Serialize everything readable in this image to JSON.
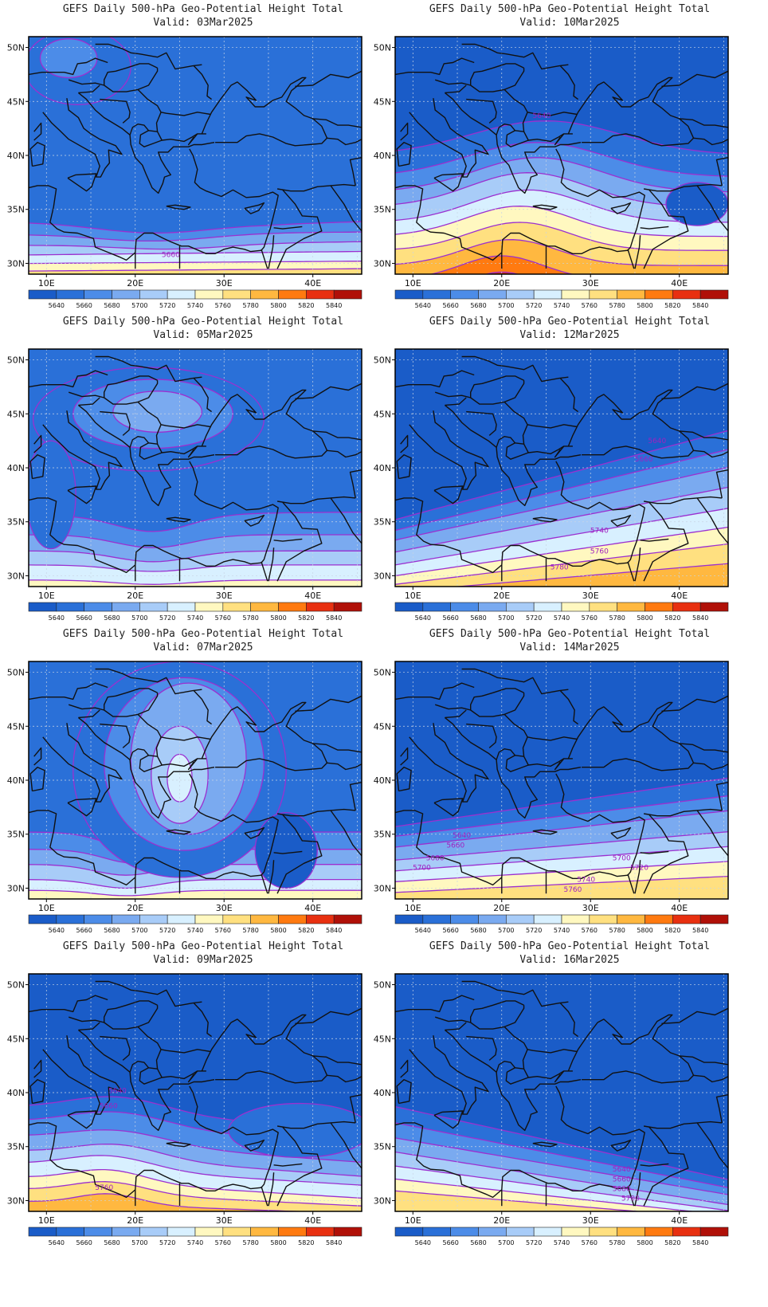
{
  "title_prefix": "GEFS Daily 500-hPa Geo-Potential Height Total",
  "valid_prefix": "Valid:",
  "lat_labels": [
    "50N",
    "45N",
    "40N",
    "35N",
    "30N"
  ],
  "lon_labels": [
    "10E",
    "20E",
    "30E",
    "40E"
  ],
  "colorbar": {
    "labels": [
      "5640",
      "5660",
      "5680",
      "5700",
      "5720",
      "5740",
      "5760",
      "5780",
      "5800",
      "5820",
      "5840"
    ],
    "colors": [
      "#1a5cc8",
      "#2a70d8",
      "#4c8ce8",
      "#7aaaf0",
      "#a8ccf8",
      "#d8f0ff",
      "#fff8c0",
      "#ffe080",
      "#ffb840",
      "#ff7a10",
      "#e83010",
      "#b01008"
    ]
  },
  "panels": [
    {
      "date": "03Mar2025",
      "labels": [
        {
          "text": "5660",
          "lon": 24.0,
          "lat": 30.8
        }
      ]
    },
    {
      "date": "10Mar2025",
      "labels": [
        {
          "text": "5640",
          "lon": 24.5,
          "lat": 43.7
        }
      ]
    },
    {
      "date": "05Mar2025",
      "labels": []
    },
    {
      "date": "12Mar2025",
      "labels": [
        {
          "text": "5640",
          "lon": 37.5,
          "lat": 42.5
        },
        {
          "text": "5660",
          "lon": 36.0,
          "lat": 40.8
        },
        {
          "text": "5740",
          "lon": 31.0,
          "lat": 34.2
        },
        {
          "text": "5760",
          "lon": 31.0,
          "lat": 32.3
        },
        {
          "text": "5780",
          "lon": 26.5,
          "lat": 30.8
        }
      ]
    },
    {
      "date": "07Mar2025",
      "labels": []
    },
    {
      "date": "14Mar2025",
      "labels": [
        {
          "text": "5640",
          "lon": 15.5,
          "lat": 34.9
        },
        {
          "text": "5660",
          "lon": 14.8,
          "lat": 34.0
        },
        {
          "text": "5680",
          "lon": 12.5,
          "lat": 32.8
        },
        {
          "text": "5700",
          "lon": 11.0,
          "lat": 31.9
        },
        {
          "text": "5700",
          "lon": 33.5,
          "lat": 32.8
        },
        {
          "text": "5720",
          "lon": 35.5,
          "lat": 31.9
        },
        {
          "text": "5740",
          "lon": 29.5,
          "lat": 30.8
        },
        {
          "text": "5760",
          "lon": 28.0,
          "lat": 29.9
        }
      ]
    },
    {
      "date": "09Mar2025",
      "labels": [
        {
          "text": "5640",
          "lon": 18.0,
          "lat": 40.2
        },
        {
          "text": "5660",
          "lon": 17.0,
          "lat": 38.8
        },
        {
          "text": "5760",
          "lon": 16.5,
          "lat": 31.2
        }
      ]
    },
    {
      "date": "16Mar2025",
      "labels": [
        {
          "text": "5640",
          "lon": 33.5,
          "lat": 32.9
        },
        {
          "text": "5660",
          "lon": 33.5,
          "lat": 32.0
        },
        {
          "text": "5680",
          "lon": 33.5,
          "lat": 31.1
        },
        {
          "text": "5700",
          "lon": 34.5,
          "lat": 30.2
        }
      ]
    }
  ]
}
